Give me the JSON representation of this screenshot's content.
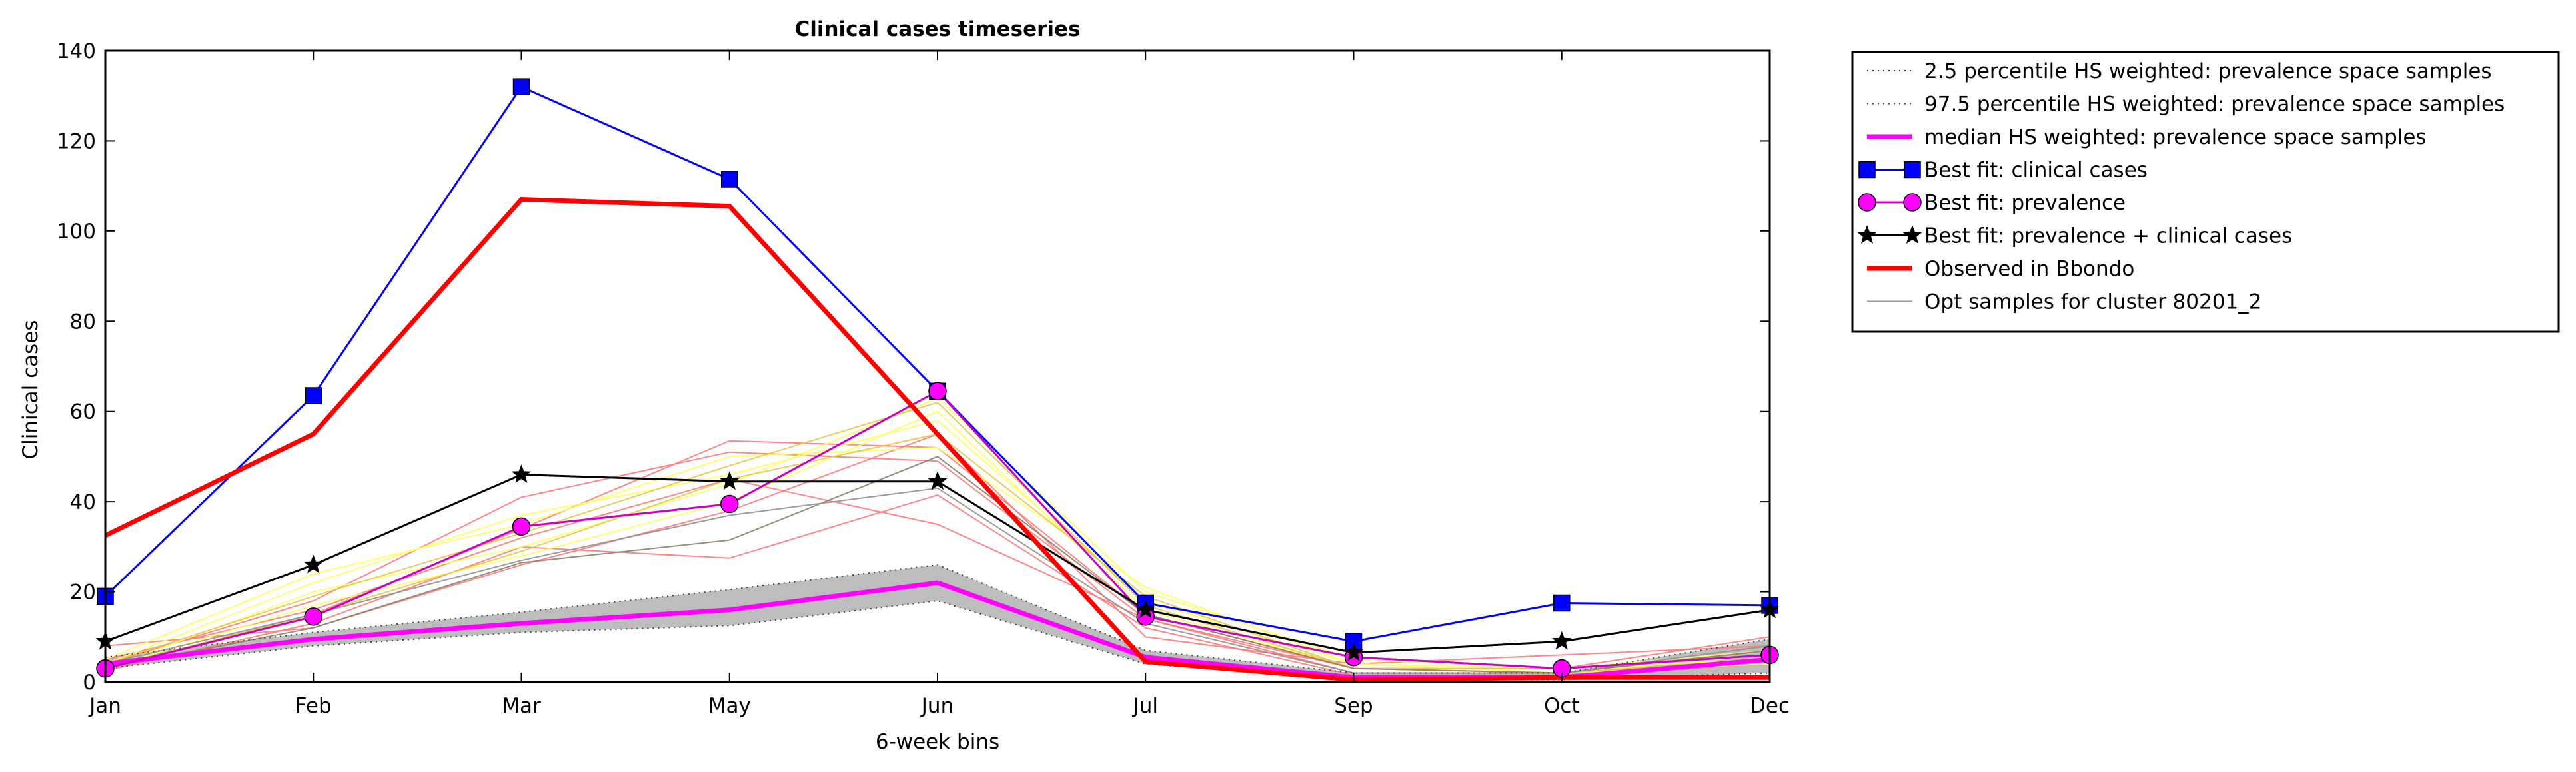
{
  "chart_data": {
    "type": "line",
    "title": "Clinical cases timeseries",
    "xlabel": "6-week bins",
    "ylabel": "Clinical cases",
    "categories": [
      "Jan",
      "Feb",
      "Mar",
      "May",
      "Jun",
      "Jul",
      "Sep",
      "Oct",
      "Dec"
    ],
    "ylim": [
      0,
      140
    ],
    "yticks": [
      "0",
      "20",
      "40",
      "60",
      "80",
      "100",
      "120",
      "140"
    ],
    "grid": false,
    "legend_position": "outside-top-right",
    "band": {
      "name": "HS weighted: prevalence space samples (2.5-97.5 percentile band)",
      "fill": "#bdbdbd",
      "lower": [
        3,
        8,
        11,
        12.5,
        18,
        4,
        0.5,
        0.5,
        2
      ],
      "upper": [
        5.5,
        11,
        15.5,
        20.5,
        26,
        7,
        2,
        2,
        9.5
      ]
    },
    "sample_lines": [
      {
        "color": "#ff7a7a",
        "values": [
          3,
          15,
          34,
          53.5,
          52,
          15,
          3,
          2,
          5
        ]
      },
      {
        "color": "#ff7a7a",
        "values": [
          4,
          18,
          41,
          51,
          49,
          14,
          2,
          2,
          7
        ]
      },
      {
        "color": "#ff7a7a",
        "values": [
          2.5,
          13,
          30,
          27.5,
          41.5,
          12,
          1.5,
          1.5,
          4
        ]
      },
      {
        "color": "#ff7a7a",
        "values": [
          5,
          16,
          32,
          45,
          35,
          14,
          3,
          3,
          10
        ]
      },
      {
        "color": "#ff7a7a",
        "values": [
          8,
          12,
          26,
          38,
          55,
          10,
          4,
          6,
          8
        ]
      },
      {
        "color": "#ffff66",
        "values": [
          3,
          20,
          30,
          44,
          63,
          20,
          5,
          3,
          5
        ]
      },
      {
        "color": "#ffff66",
        "values": [
          4,
          22,
          37,
          46,
          58,
          18,
          4,
          2,
          4
        ]
      },
      {
        "color": "#ffff66",
        "values": [
          3,
          17,
          28,
          40,
          60,
          16,
          3,
          2,
          6
        ]
      },
      {
        "color": "#ffff66",
        "values": [
          5,
          24,
          35,
          50,
          52,
          21,
          4,
          3,
          7
        ]
      },
      {
        "color": "#e6c84d",
        "values": [
          3,
          15,
          29,
          45,
          55,
          19,
          3,
          2,
          5
        ]
      },
      {
        "color": "#e6c84d",
        "values": [
          4,
          19,
          33,
          48,
          62,
          17,
          3,
          3,
          6
        ]
      },
      {
        "color": "#8c7f6a",
        "values": [
          3,
          12,
          26.5,
          31.5,
          50,
          15,
          3,
          2,
          7
        ]
      },
      {
        "color": "#909090",
        "values": [
          4,
          15,
          27,
          37,
          43,
          13,
          2,
          2,
          8
        ]
      }
    ],
    "series": [
      {
        "name": "2.5 percentile HS weighted: prevalence space samples",
        "color": "#404040",
        "style": "dotted",
        "width": 2,
        "values": [
          3,
          8,
          11,
          12.5,
          18,
          4,
          0.5,
          0.5,
          2
        ]
      },
      {
        "name": "97.5 percentile HS weighted: prevalence space samples",
        "color": "#404040",
        "style": "dotted",
        "width": 2,
        "values": [
          5.5,
          11,
          15.5,
          20.5,
          26,
          7,
          2,
          2,
          9.5
        ]
      },
      {
        "name": "median HS weighted: prevalence space samples",
        "color": "#ff00ff",
        "style": "solid",
        "width": 7,
        "values": [
          4,
          9.5,
          13,
          16,
          22,
          5.5,
          1,
          1,
          5
        ]
      },
      {
        "name": "Best fit: clinical cases",
        "color": "#0000ff",
        "style": "solid",
        "width": 3,
        "marker": "square",
        "values": [
          19,
          63.5,
          132,
          111.5,
          64.5,
          17.5,
          9,
          17.5,
          17
        ]
      },
      {
        "name": "Best fit: prevalence",
        "color": "#c800c8",
        "style": "solid",
        "width": 3,
        "marker": "circle",
        "values": [
          3,
          14.5,
          34.5,
          39.5,
          64.5,
          14.5,
          5.5,
          3,
          6
        ]
      },
      {
        "name": "Best fit: prevalence + clinical cases",
        "color": "#000000",
        "style": "solid",
        "width": 3,
        "marker": "star",
        "values": [
          9,
          26,
          46,
          44.5,
          44.5,
          16,
          6.5,
          9,
          16
        ]
      },
      {
        "name": "Observed in Bbondo",
        "color": "#ff0000",
        "style": "solid",
        "width": 7,
        "values": [
          32.5,
          55,
          107,
          105.5,
          55,
          4.5,
          0.5,
          1,
          1
        ]
      },
      {
        "name": "Opt samples for cluster 80201_2",
        "color": "#999999",
        "style": "solid",
        "width": 2,
        "values": null
      }
    ],
    "legend_order": [
      {
        "label": "2.5 percentile HS weighted: prevalence space samples",
        "color": "#404040",
        "style": "dotted",
        "width": 2,
        "marker": "none"
      },
      {
        "label": "97.5 percentile HS weighted: prevalence space samples",
        "color": "#404040",
        "style": "dotted",
        "width": 2,
        "marker": "none"
      },
      {
        "label": "median HS weighted: prevalence space samples",
        "color": "#ff00ff",
        "style": "solid",
        "width": 7,
        "marker": "none"
      },
      {
        "label": "Best fit: clinical cases",
        "color": "#0000ff",
        "style": "solid",
        "width": 3,
        "marker": "square"
      },
      {
        "label": "Best fit: prevalence",
        "color": "#c800c8",
        "style": "solid",
        "width": 3,
        "marker": "circle"
      },
      {
        "label": "Best fit: prevalence + clinical cases",
        "color": "#000000",
        "style": "solid",
        "width": 3,
        "marker": "star"
      },
      {
        "label": "Observed in Bbondo",
        "color": "#ff0000",
        "style": "solid",
        "width": 7,
        "marker": "none"
      },
      {
        "label": "Opt samples for cluster 80201_2",
        "color": "#999999",
        "style": "solid",
        "width": 2,
        "marker": "none"
      }
    ]
  }
}
